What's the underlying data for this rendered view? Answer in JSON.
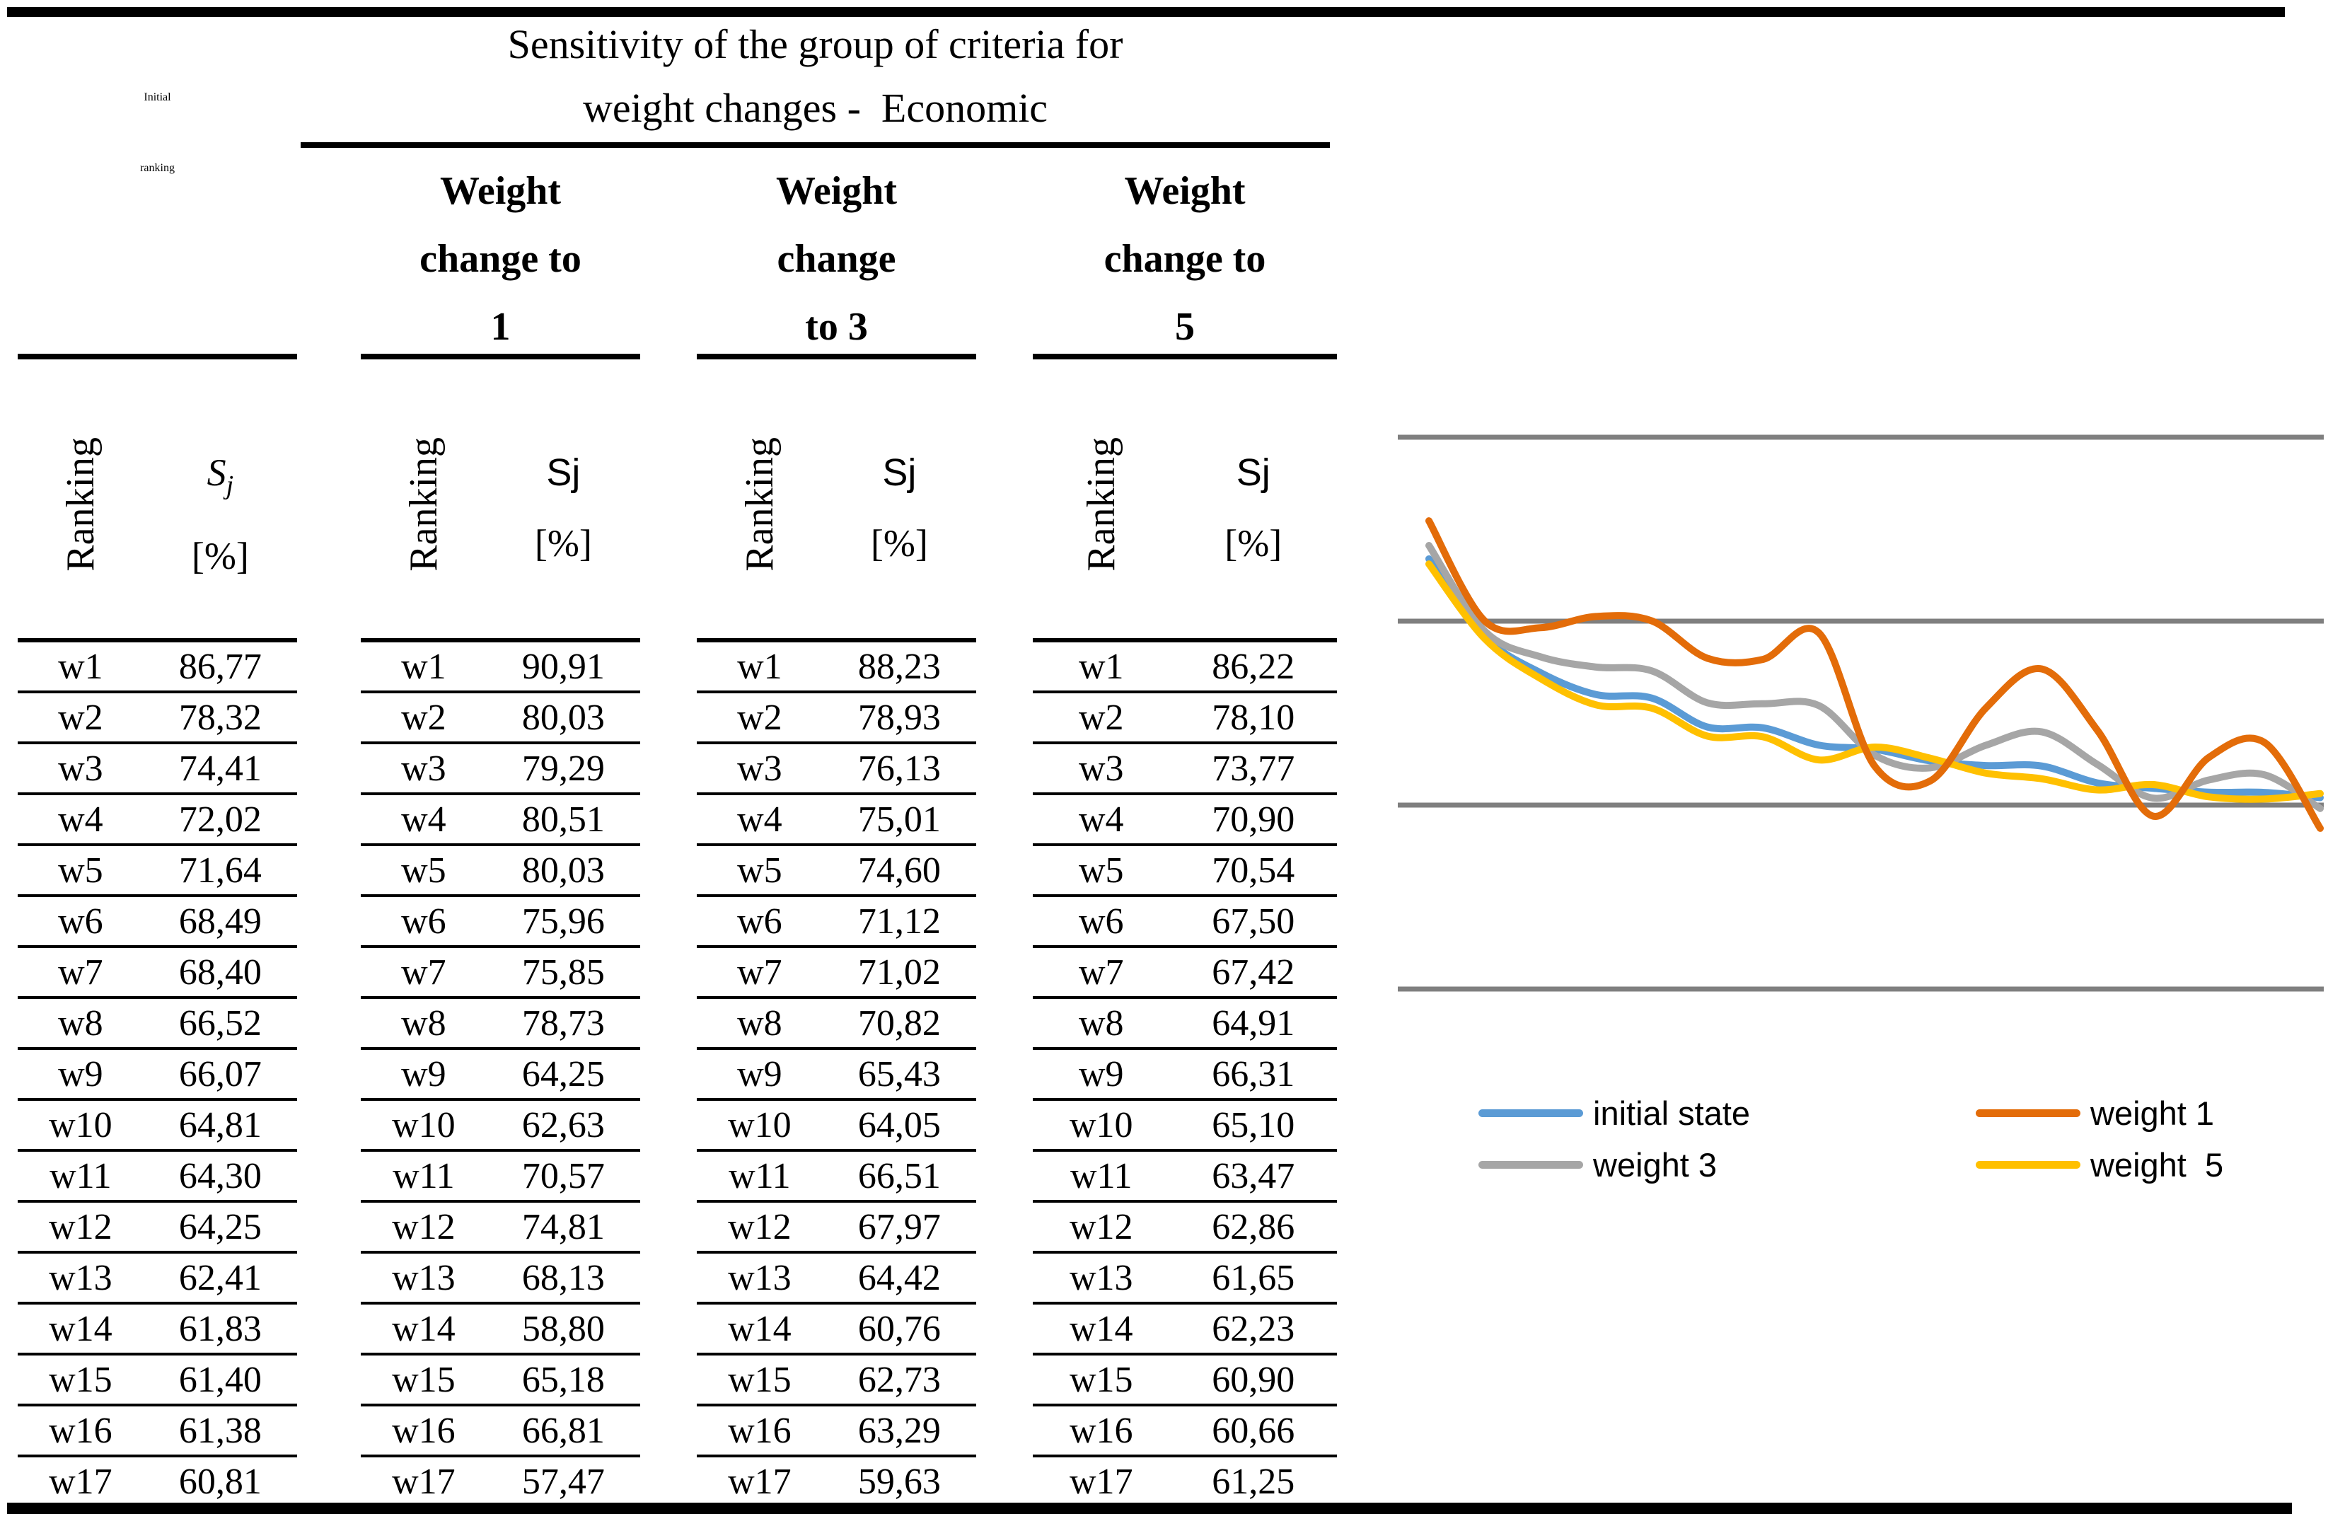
{
  "table": {
    "initial_title": "Initial\nranking",
    "span_title": "Sensitivity of the group of criteria for\nweight changes -  Economic",
    "groups": [
      {
        "title": "",
        "ranking_header": "Ranking",
        "sj_main": "S",
        "sj_sub": "j",
        "sj_unit": "[%]",
        "rows": [
          {
            "rank": "w1",
            "sj": "86,77"
          },
          {
            "rank": "w2",
            "sj": "78,32"
          },
          {
            "rank": "w3",
            "sj": "74,41"
          },
          {
            "rank": "w4",
            "sj": "72,02"
          },
          {
            "rank": "w5",
            "sj": "71,64"
          },
          {
            "rank": "w6",
            "sj": "68,49"
          },
          {
            "rank": "w7",
            "sj": "68,40"
          },
          {
            "rank": "w8",
            "sj": "66,52"
          },
          {
            "rank": "w9",
            "sj": "66,07"
          },
          {
            "rank": "w10",
            "sj": "64,81"
          },
          {
            "rank": "w11",
            "sj": "64,30"
          },
          {
            "rank": "w12",
            "sj": "64,25"
          },
          {
            "rank": "w13",
            "sj": "62,41"
          },
          {
            "rank": "w14",
            "sj": "61,83"
          },
          {
            "rank": "w15",
            "sj": "61,40"
          },
          {
            "rank": "w16",
            "sj": "61,38"
          },
          {
            "rank": "w17",
            "sj": "60,81"
          }
        ]
      },
      {
        "title": "Weight\nchange to\n1",
        "ranking_header": "Ranking",
        "sj_main": "Sj",
        "sj_sub": "",
        "sj_unit": "[%]",
        "rows": [
          {
            "rank": "w1",
            "sj": "90,91"
          },
          {
            "rank": "w2",
            "sj": "80,03"
          },
          {
            "rank": "w3",
            "sj": "79,29"
          },
          {
            "rank": "w4",
            "sj": "80,51"
          },
          {
            "rank": "w5",
            "sj": "80,03"
          },
          {
            "rank": "w6",
            "sj": "75,96"
          },
          {
            "rank": "w7",
            "sj": "75,85"
          },
          {
            "rank": "w8",
            "sj": "78,73"
          },
          {
            "rank": "w9",
            "sj": "64,25"
          },
          {
            "rank": "w10",
            "sj": "62,63"
          },
          {
            "rank": "w11",
            "sj": "70,57"
          },
          {
            "rank": "w12",
            "sj": "74,81"
          },
          {
            "rank": "w13",
            "sj": "68,13"
          },
          {
            "rank": "w14",
            "sj": "58,80"
          },
          {
            "rank": "w15",
            "sj": "65,18"
          },
          {
            "rank": "w16",
            "sj": "66,81"
          },
          {
            "rank": "w17",
            "sj": "57,47"
          }
        ]
      },
      {
        "title": "Weight\nchange\nto 3",
        "ranking_header": "Ranking",
        "sj_main": "Sj",
        "sj_sub": "",
        "sj_unit": "[%]",
        "rows": [
          {
            "rank": "w1",
            "sj": "88,23"
          },
          {
            "rank": "w2",
            "sj": "78,93"
          },
          {
            "rank": "w3",
            "sj": "76,13"
          },
          {
            "rank": "w4",
            "sj": "75,01"
          },
          {
            "rank": "w5",
            "sj": "74,60"
          },
          {
            "rank": "w6",
            "sj": "71,12"
          },
          {
            "rank": "w7",
            "sj": "71,02"
          },
          {
            "rank": "w8",
            "sj": "70,82"
          },
          {
            "rank": "w9",
            "sj": "65,43"
          },
          {
            "rank": "w10",
            "sj": "64,05"
          },
          {
            "rank": "w11",
            "sj": "66,51"
          },
          {
            "rank": "w12",
            "sj": "67,97"
          },
          {
            "rank": "w13",
            "sj": "64,42"
          },
          {
            "rank": "w14",
            "sj": "60,76"
          },
          {
            "rank": "w15",
            "sj": "62,73"
          },
          {
            "rank": "w16",
            "sj": "63,29"
          },
          {
            "rank": "w17",
            "sj": "59,63"
          }
        ]
      },
      {
        "title": "Weight\nchange to\n5",
        "ranking_header": "Ranking",
        "sj_main": "Sj",
        "sj_sub": "",
        "sj_unit": "[%]",
        "rows": [
          {
            "rank": "w1",
            "sj": "86,22"
          },
          {
            "rank": "w2",
            "sj": "78,10"
          },
          {
            "rank": "w3",
            "sj": "73,77"
          },
          {
            "rank": "w4",
            "sj": "70,90"
          },
          {
            "rank": "w5",
            "sj": "70,54"
          },
          {
            "rank": "w6",
            "sj": "67,50"
          },
          {
            "rank": "w7",
            "sj": "67,42"
          },
          {
            "rank": "w8",
            "sj": "64,91"
          },
          {
            "rank": "w9",
            "sj": "66,31"
          },
          {
            "rank": "w10",
            "sj": "65,10"
          },
          {
            "rank": "w11",
            "sj": "63,47"
          },
          {
            "rank": "w12",
            "sj": "62,86"
          },
          {
            "rank": "w13",
            "sj": "61,65"
          },
          {
            "rank": "w14",
            "sj": "62,23"
          },
          {
            "rank": "w15",
            "sj": "60,90"
          },
          {
            "rank": "w16",
            "sj": "60,66"
          },
          {
            "rank": "w17",
            "sj": "61,25"
          }
        ]
      }
    ]
  },
  "chart_data": {
    "type": "line",
    "smooth": true,
    "title": "",
    "xlabel": "",
    "ylabel": "",
    "categories": [
      "w1",
      "w2",
      "w3",
      "w4",
      "w5",
      "w6",
      "w7",
      "w8",
      "w9",
      "w10",
      "w11",
      "w12",
      "w13",
      "w14",
      "w15",
      "w16",
      "w17"
    ],
    "ylim": [
      40,
      100
    ],
    "gridline_values": [
      100,
      80,
      60,
      40
    ],
    "grid_color": "#7f7f7f",
    "legend_position": "bottom",
    "series": [
      {
        "name": "initial state",
        "color": "#5B9BD5",
        "values": [
          86.77,
          78.32,
          74.41,
          72.02,
          71.64,
          68.49,
          68.4,
          66.52,
          66.07,
          64.81,
          64.3,
          64.25,
          62.41,
          61.83,
          61.4,
          61.38,
          60.81
        ]
      },
      {
        "name": "weight 1",
        "color": "#E36C09",
        "values": [
          90.91,
          80.03,
          79.29,
          80.51,
          80.03,
          75.96,
          75.85,
          78.73,
          64.25,
          62.63,
          70.57,
          74.81,
          68.13,
          58.8,
          65.18,
          66.81,
          57.47
        ]
      },
      {
        "name": "weight 3",
        "color": "#A6A6A6",
        "values": [
          88.23,
          78.93,
          76.13,
          75.01,
          74.6,
          71.12,
          71.02,
          70.82,
          65.43,
          64.05,
          66.51,
          67.97,
          64.42,
          60.76,
          62.73,
          63.29,
          59.63
        ]
      },
      {
        "name": "weight  5",
        "color": "#FFC000",
        "values": [
          86.22,
          78.1,
          73.77,
          70.9,
          70.54,
          67.5,
          67.42,
          64.91,
          66.31,
          65.1,
          63.47,
          62.86,
          61.65,
          62.23,
          60.9,
          60.66,
          61.25
        ]
      }
    ]
  }
}
